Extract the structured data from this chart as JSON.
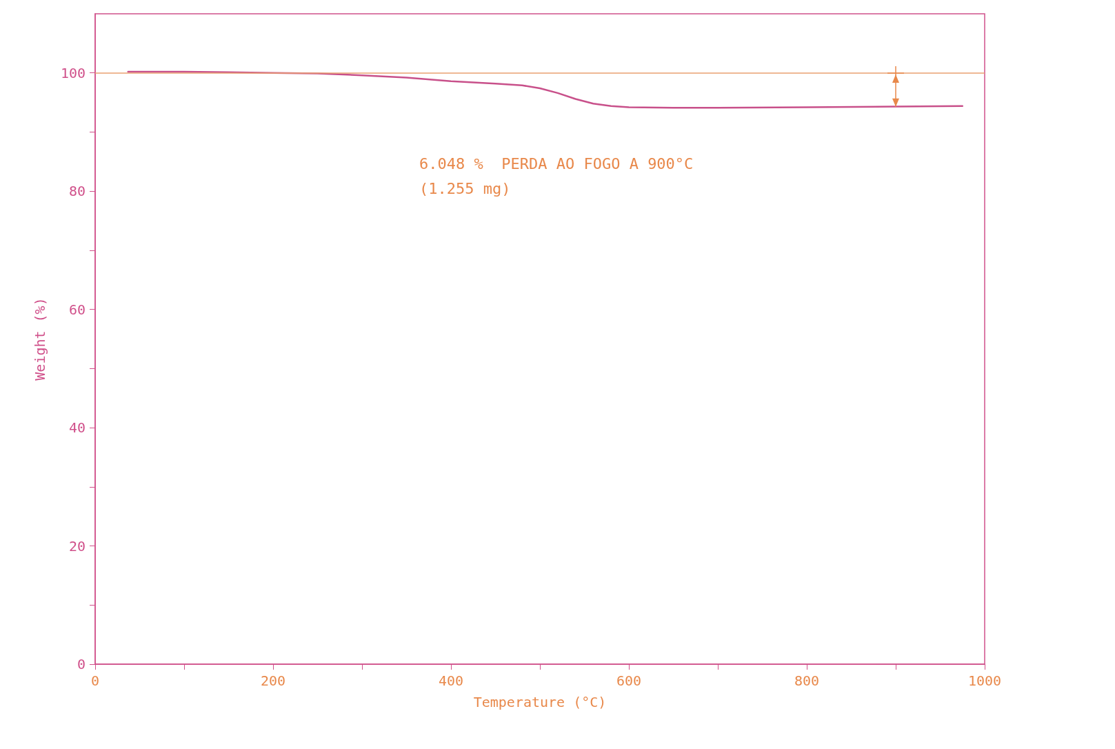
{
  "chart_data": {
    "type": "line",
    "xlabel": "Temperature (°C)",
    "ylabel": "Weight (%)",
    "x": [
      37,
      100,
      150,
      200,
      250,
      300,
      350,
      400,
      450,
      480,
      500,
      520,
      540,
      560,
      580,
      600,
      650,
      700,
      800,
      900,
      975
    ],
    "series": [
      {
        "color": "#c8508a",
        "values": [
          100.2,
          100.2,
          100.1,
          100.0,
          99.9,
          99.6,
          99.2,
          98.6,
          98.2,
          97.9,
          97.4,
          96.6,
          95.6,
          94.8,
          94.4,
          94.2,
          94.1,
          94.1,
          94.2,
          94.3,
          94.4
        ]
      }
    ],
    "xlim": [
      0,
      1000
    ],
    "xticks": [
      0,
      {
        "value": 100,
        "label": null
      },
      200,
      {
        "value": 300,
        "label": null
      },
      400,
      {
        "value": 500,
        "label": null
      },
      600,
      {
        "value": 700,
        "label": null
      },
      800,
      {
        "value": 900,
        "label": null
      },
      1000
    ],
    "ylim": [
      0,
      110
    ],
    "yticks": [
      0,
      {
        "value": 10,
        "label": null
      },
      20,
      {
        "value": 30,
        "label": null
      },
      40,
      {
        "value": 50,
        "label": null
      },
      60,
      {
        "value": 70,
        "label": null
      },
      80,
      {
        "value": 90,
        "label": null
      },
      100
    ],
    "ref_lines": [
      {
        "axis": "y",
        "value": 100,
        "color": "#e8a070"
      }
    ],
    "annotations": [
      "6.048 %  PERDA AO FOGO A 900°C",
      "(1.255 mg)"
    ],
    "grid": false,
    "marker": "none",
    "line_style": "solid"
  }
}
